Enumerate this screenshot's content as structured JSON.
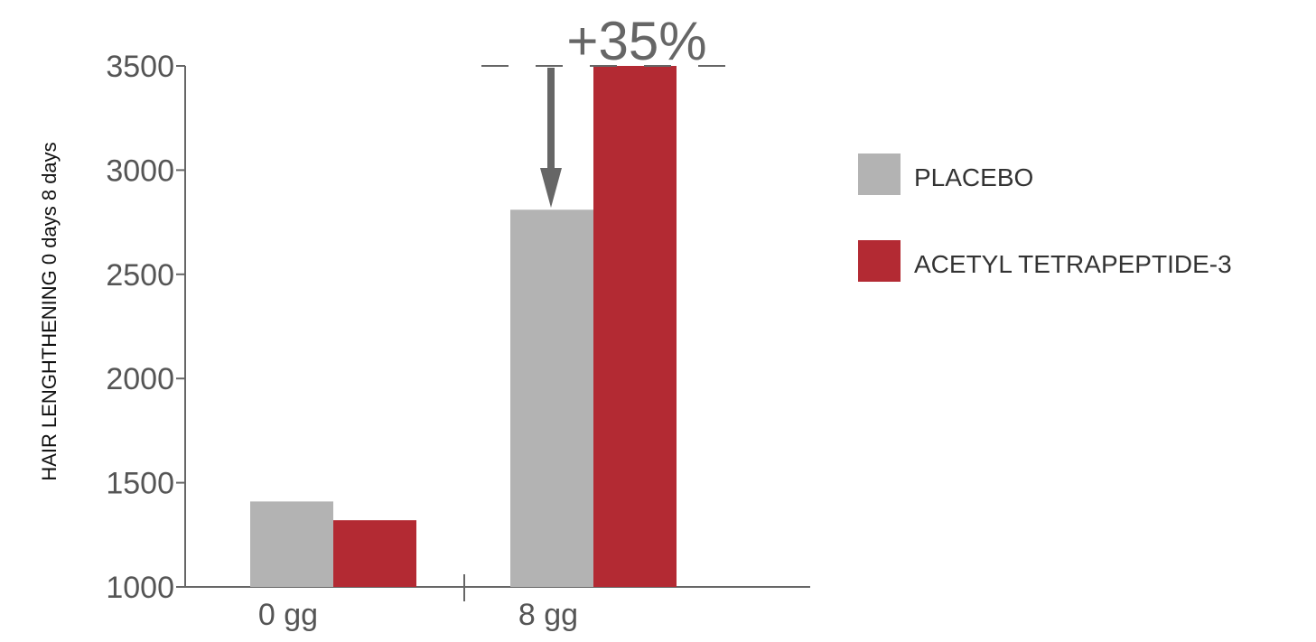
{
  "chart_data": {
    "type": "bar",
    "title": "",
    "xlabel": "",
    "ylabel": "HAIR LENGHTHENING  0 days  8 days",
    "categories": [
      "0 gg",
      "8 gg"
    ],
    "series": [
      {
        "name": "PLACEBO",
        "values": [
          1410,
          2810
        ],
        "color": "#b3b3b3"
      },
      {
        "name": "ACETYL TETRAPEPTIDE-3",
        "values": [
          1320,
          3500
        ],
        "color": "#b32a33"
      }
    ],
    "ylim": [
      1000,
      3500
    ],
    "yticks": [
      1000,
      1500,
      2000,
      2500,
      3000,
      3500
    ],
    "grid": false,
    "legend_position": "right",
    "annotation": "+35%",
    "axis_color": "#666666"
  }
}
